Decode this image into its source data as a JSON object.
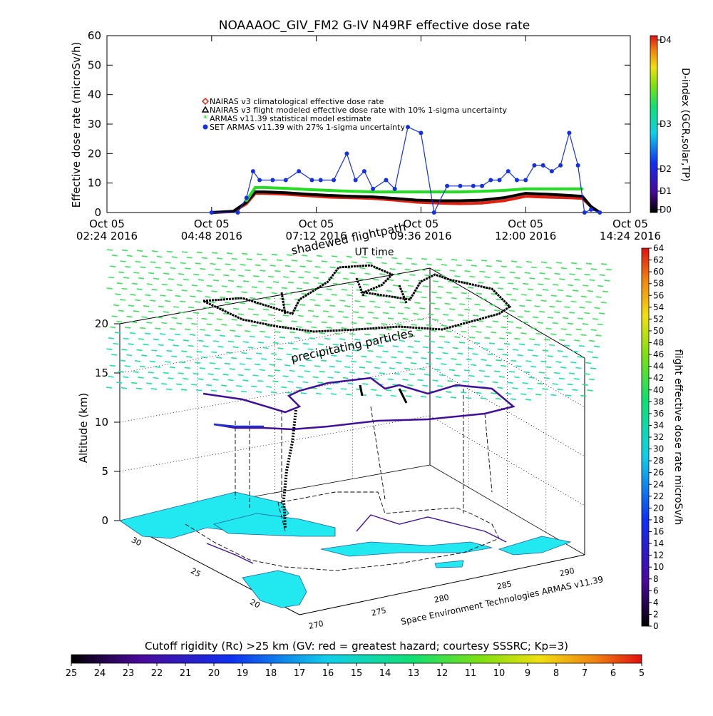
{
  "title": "NOAAAOC_GIV_FM2 G-IV   N49RF  effective dose rate",
  "top_chart": {
    "ylabel": "Effective dose rate (microSv/h)",
    "xlabel": "UT time",
    "yticks": [
      "0",
      "10",
      "20",
      "30",
      "40",
      "50",
      "60"
    ],
    "xticks": [
      {
        "top": "Oct 05",
        "bottom": "02:24 2016"
      },
      {
        "top": "Oct 05",
        "bottom": "04:48 2016"
      },
      {
        "top": "Oct 05",
        "bottom": "07:12 2016"
      },
      {
        "top": "Oct 05",
        "bottom": "09:36 2016"
      },
      {
        "top": "Oct 05",
        "bottom": "12:00 2016"
      },
      {
        "top": "Oct 05",
        "bottom": "14:24 2016"
      }
    ],
    "legend": [
      {
        "label": "NAIRAS v3 climatological effective dose rate",
        "color": "#e02010",
        "marker": "diamond"
      },
      {
        "label": "NAIRAS v3 flight modeled effective dose rate with 10% 1-sigma uncertainty",
        "color": "#000000",
        "marker": "triangle"
      },
      {
        "label": "ARMAS v11.39 statistical model estimate",
        "color": "#22dd22",
        "marker": "star"
      },
      {
        "label": "SET ARMAS v11.39 with 27% 1-sigma uncertainty",
        "color": "#1530e0",
        "marker": "circle"
      }
    ],
    "dindex_label": "D-index (GCR,solar,TP)",
    "dindex_ticks": [
      "D0",
      "D1",
      "D2",
      "D3",
      "D4"
    ]
  },
  "chart_data": [
    {
      "type": "line",
      "title": "NOAAAOC_GIV_FM2 G-IV   N49RF  effective dose rate",
      "xlabel": "UT time",
      "ylabel": "Effective dose rate (microSv/h)",
      "ylim": [
        0,
        60
      ],
      "x_unit": "hours UT, Oct 05 2016",
      "xlim": [
        2.4,
        14.4
      ],
      "series": [
        {
          "name": "NAIRAS v3 climatological effective dose rate",
          "color": "#e02010",
          "x": [
            4.8,
            5.3,
            5.6,
            5.8,
            6.0,
            6.5,
            7.0,
            7.5,
            8.0,
            8.5,
            9.0,
            9.5,
            10.0,
            10.5,
            11.0,
            11.5,
            12.0,
            12.5,
            13.0,
            13.3,
            13.5,
            13.7
          ],
          "y": [
            0,
            0.3,
            3,
            6.5,
            6.5,
            6.2,
            5.7,
            5.2,
            5.0,
            4.8,
            4.2,
            3.5,
            3.2,
            3.0,
            3.2,
            4.0,
            5.5,
            5.2,
            5.0,
            4.8,
            2,
            0
          ]
        },
        {
          "name": "NAIRAS v3 flight modeled effective dose rate with 10% 1-sigma uncertainty",
          "color": "#000000",
          "x": [
            4.8,
            5.3,
            5.6,
            5.8,
            6.0,
            6.5,
            7.0,
            7.5,
            8.0,
            8.5,
            9.0,
            9.5,
            10.0,
            10.5,
            11.0,
            11.5,
            12.0,
            12.5,
            13.0,
            13.3,
            13.5,
            13.7
          ],
          "y": [
            0,
            0.4,
            3.5,
            7.0,
            7.0,
            6.7,
            6.2,
            5.8,
            5.5,
            5.3,
            4.8,
            4.2,
            4.0,
            4.0,
            4.2,
            5.0,
            6.5,
            6.2,
            5.8,
            5.5,
            2,
            0
          ]
        },
        {
          "name": "ARMAS v11.39 statistical model estimate",
          "color": "#22dd22",
          "x": [
            5.6,
            5.8,
            6.0,
            6.5,
            7.0,
            7.5,
            8.0,
            8.5,
            9.0,
            9.5,
            10.0,
            10.5,
            11.0,
            11.5,
            12.0,
            12.5,
            13.0,
            13.3
          ],
          "y": [
            4,
            8.5,
            8.5,
            8.2,
            7.8,
            7.5,
            7.2,
            7.0,
            7.0,
            7.0,
            7.0,
            7.0,
            7.2,
            7.5,
            8.0,
            8.0,
            8.0,
            8.0
          ]
        },
        {
          "name": "SET ARMAS v11.39 with 27% 1-sigma uncertainty",
          "color": "#1530e0",
          "x": [
            4.8,
            5.4,
            5.6,
            5.75,
            5.9,
            6.2,
            6.5,
            6.8,
            7.1,
            7.3,
            7.6,
            7.9,
            8.1,
            8.3,
            8.5,
            8.8,
            9.0,
            9.3,
            9.6,
            9.9,
            10.2,
            10.5,
            10.8,
            11.0,
            11.2,
            11.4,
            11.6,
            11.8,
            12.0,
            12.2,
            12.4,
            12.6,
            12.8,
            13.0,
            13.2,
            13.35,
            13.5,
            13.7
          ],
          "y": [
            0,
            0,
            5,
            14,
            11,
            11,
            11,
            14,
            11,
            11,
            11,
            20,
            11,
            14,
            8,
            11,
            8,
            29,
            27,
            0,
            9,
            9,
            9,
            9,
            11,
            11,
            14,
            11,
            11,
            16,
            16,
            14,
            16,
            27,
            16,
            0,
            1,
            0
          ]
        }
      ]
    },
    {
      "type": "scatter",
      "title": "shadewed flightpath",
      "zlabel": "Altitude (km)",
      "zticks": [
        "0",
        "5",
        "10",
        "15",
        "20"
      ],
      "lat_ticks": [
        "30",
        "25",
        "20"
      ],
      "lon_ticks": [
        "270",
        "275",
        "280",
        "285",
        "290"
      ],
      "labels": [
        "shadewed flightpath",
        "precipitating particles",
        "Space Environment Technologies ARMAS v11.39"
      ],
      "flight_colorbar": {
        "label": "flight effective dose rate microSv/h",
        "range": [
          0,
          64
        ],
        "ticks": [
          "0",
          "2",
          "4",
          "6",
          "8",
          "10",
          "12",
          "14",
          "16",
          "18",
          "20",
          "22",
          "24",
          "26",
          "28",
          "30",
          "32",
          "34",
          "36",
          "38",
          "40",
          "42",
          "44",
          "46",
          "48",
          "50",
          "52",
          "54",
          "56",
          "58",
          "60",
          "62",
          "64"
        ]
      },
      "cutoff_colorbar": {
        "label": "Cutoff rigidity (Rc) >25 km (GV: red = greatest hazard; courtesy SSSRC; Kp=3)",
        "ticks": [
          "25",
          "24",
          "23",
          "22",
          "21",
          "20",
          "19",
          "18",
          "17",
          "16",
          "15",
          "14",
          "13",
          "12",
          "11",
          "10",
          "9",
          "8",
          "7",
          "6",
          "5"
        ]
      }
    }
  ],
  "bottom_text": {
    "shadow_label": "shadewed flightpath",
    "precip_label": "precipitating particles",
    "credit": "Space Environment Technologies ARMAS v11.39",
    "altitude_label": "Altitude (km)",
    "flight_cb_label": "flight effective dose rate microSv/h",
    "cutoff_label": "Cutoff rigidity (Rc) >25 km (GV: red = greatest hazard; courtesy SSSRC; Kp=3)"
  },
  "colors": {
    "jet_dark": "#000000",
    "cyan_land": "#22e8f0",
    "purple_path": "#40109a",
    "blue_path": "#2030d0",
    "grid": "#000000"
  }
}
